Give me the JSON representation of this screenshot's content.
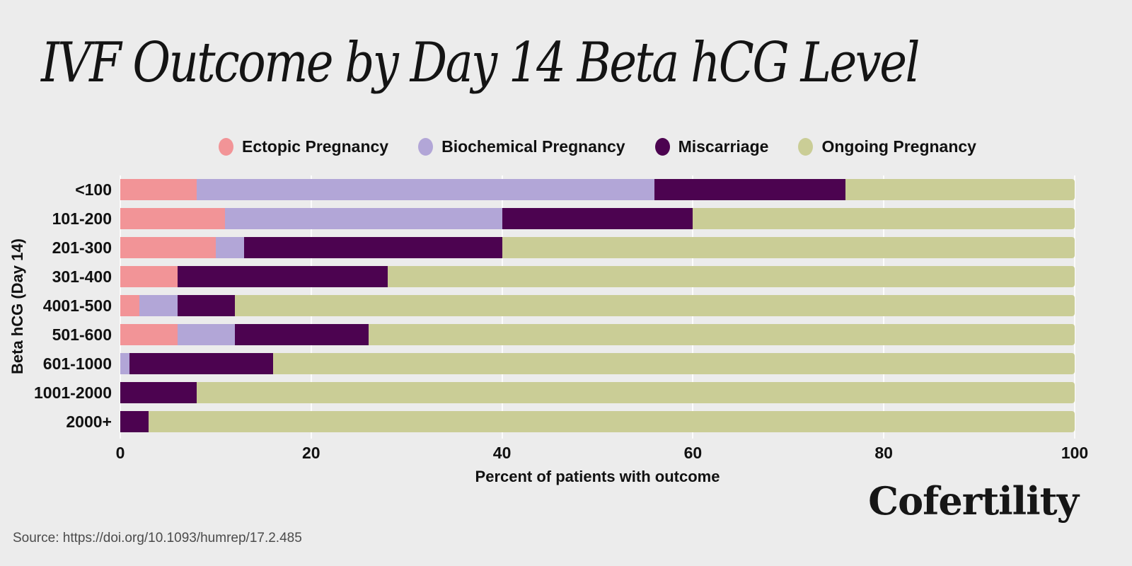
{
  "page": {
    "background": "#ececec"
  },
  "title": "IVF Outcome by Day 14 Beta hCG Level",
  "chart_data": {
    "type": "bar",
    "orientation": "horizontal-stacked",
    "title": "IVF Outcome by Day 14 Beta hCG Level",
    "categories": [
      "<100",
      "101-200",
      "201-300",
      "301-400",
      "4001-500",
      "501-600",
      "601-1000",
      "1001-2000",
      "2000+"
    ],
    "series": [
      {
        "name": "Ectopic Pregnancy",
        "color": "#f29497",
        "values": [
          8,
          11,
          10,
          6,
          2,
          6,
          0,
          0,
          0
        ]
      },
      {
        "name": "Biochemical Pregnancy",
        "color": "#b2a6d7",
        "values": [
          48,
          29,
          3,
          0,
          4,
          6,
          1,
          0,
          0
        ]
      },
      {
        "name": "Miscarriage",
        "color": "#4c0350",
        "values": [
          20,
          20,
          27,
          22,
          6,
          14,
          15,
          8,
          3
        ]
      },
      {
        "name": "Ongoing Pregnancy",
        "color": "#cacd96",
        "values": [
          24,
          40,
          60,
          72,
          88,
          74,
          84,
          92,
          97
        ]
      }
    ],
    "xlabel": "Percent of patients with outcome",
    "ylabel": "Beta hCG (Day 14)",
    "xlim": [
      0,
      100
    ],
    "xticks": [
      0,
      20,
      40,
      60,
      80,
      100
    ],
    "grid": true,
    "legend_position": "top"
  },
  "branding": {
    "wordmark": "Cofertility"
  },
  "source_text": "Source: https://doi.org/10.1093/humrep/17.2.485"
}
